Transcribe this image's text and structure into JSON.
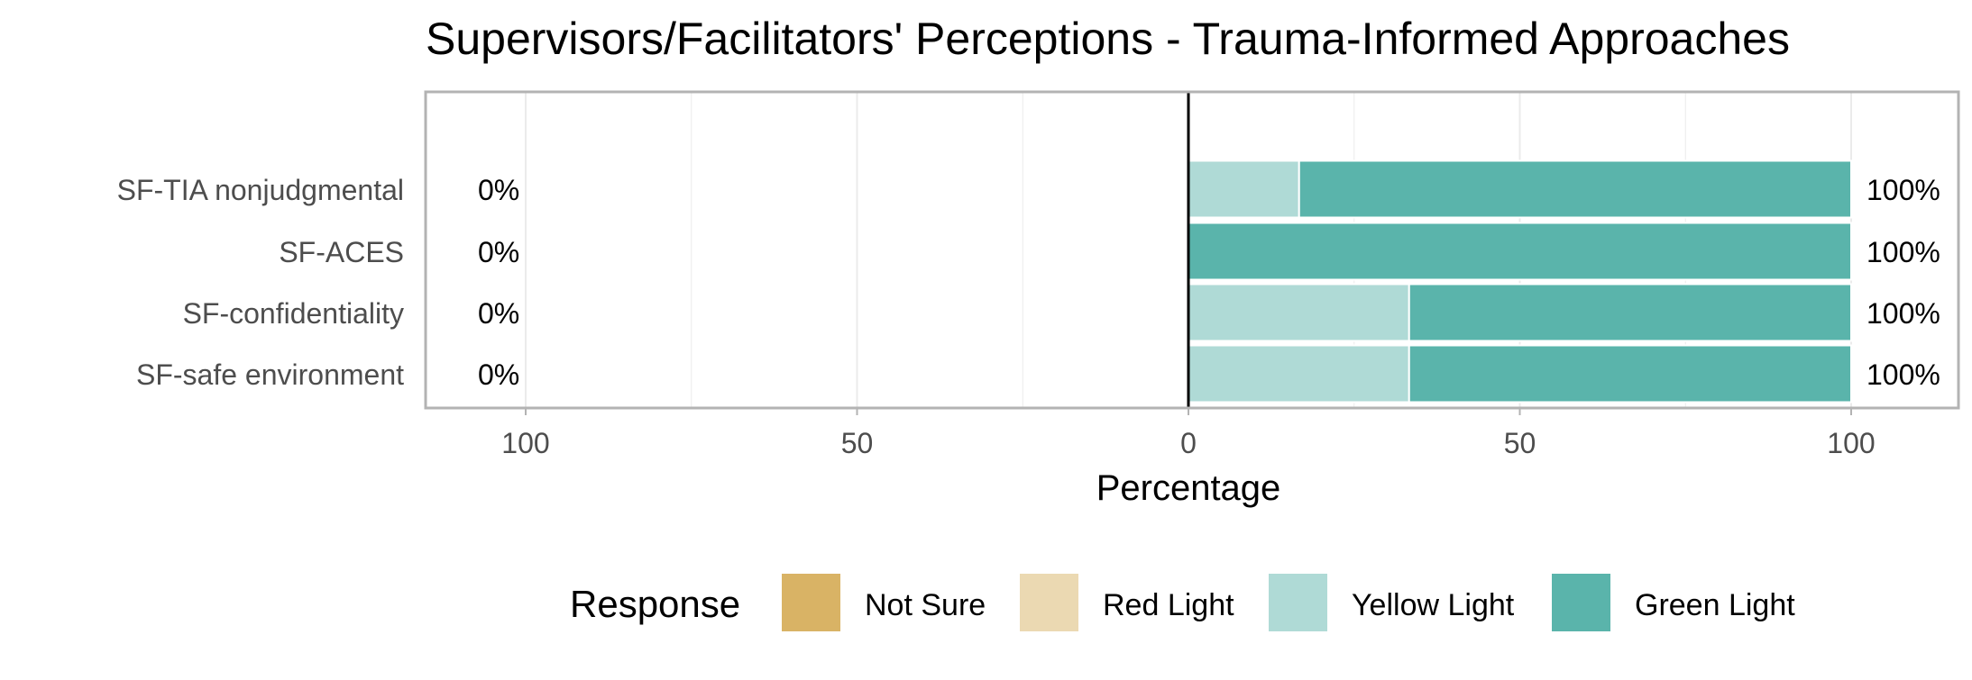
{
  "chart_data": {
    "type": "bar",
    "orientation": "horizontal",
    "stacked": "diverging",
    "title": "Supervisors/Facilitators' Perceptions - Trauma-Informed Approaches",
    "xlabel": "Percentage",
    "ylabel": "",
    "xlim": [
      -115,
      115
    ],
    "x_ticks": [
      -100,
      -50,
      0,
      50,
      100
    ],
    "x_tick_labels": [
      "100",
      "50",
      "0",
      "50",
      "100"
    ],
    "grid": true,
    "legend_position": "bottom",
    "legend_title": "Response",
    "categories": [
      "SF-TIA nonjudgmental",
      "SF-ACES",
      "SF-confidentiality",
      "SF-safe environment"
    ],
    "series": [
      {
        "name": "Not Sure",
        "color": "#D9B365",
        "side": "negative",
        "values": [
          0,
          0,
          0,
          0
        ]
      },
      {
        "name": "Red Light",
        "color": "#EBD9B2",
        "side": "negative",
        "values": [
          0,
          0,
          0,
          0
        ]
      },
      {
        "name": "Yellow Light",
        "color": "#AFDAD6",
        "side": "positive",
        "values": [
          16.7,
          0,
          33.3,
          33.3
        ]
      },
      {
        "name": "Green Light",
        "color": "#5AB4AB",
        "side": "positive",
        "values": [
          83.3,
          100,
          66.7,
          66.7
        ]
      }
    ],
    "left_labels": [
      "0%",
      "0%",
      "0%",
      "0%"
    ],
    "right_labels": [
      "100%",
      "100%",
      "100%",
      "100%"
    ]
  }
}
